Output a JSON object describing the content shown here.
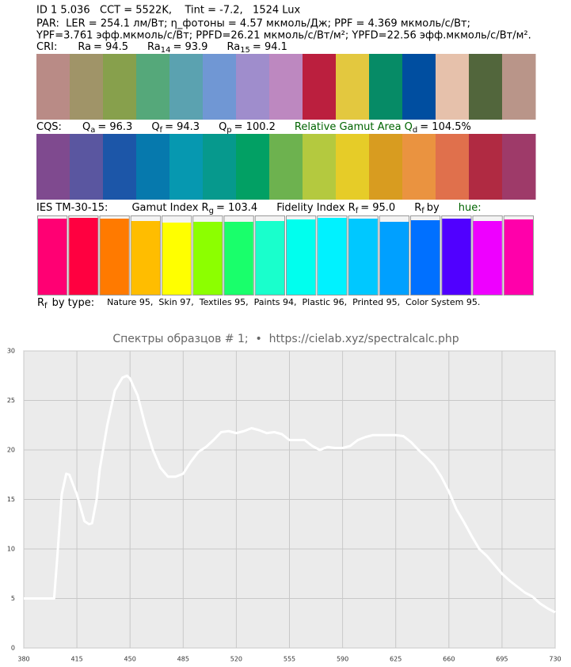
{
  "info": {
    "line1": "ID 1 5.036   CCT = 5522K,    Tint = -7.2,   1524 Lux",
    "line2": "PAR:  LER = 254.1 лм/Вт; η_фотоны = 4.57 мкмоль/Дж; PPF = 4.369 мкмоль/с/Вт;",
    "line3": "YPF=3.761 эфф.мкмоль/с/Вт; PPFD=26.21 мкмоль/с/Вт/м²; YPFD=22.56 эфф.мкмоль/с/Вт/м².",
    "cri": {
      "label": "CRI:",
      "items": [
        {
          "name": "Ra",
          "value": "= 94.5"
        },
        {
          "name": "Ra",
          "sub": "14",
          "value": "= 93.9"
        },
        {
          "name": "Ra",
          "sub": "15",
          "value": "= 94.1"
        }
      ],
      "swatches": [
        "#b98b86",
        "#a09468",
        "#87a04c",
        "#55a87a",
        "#5ba2b0",
        "#7097d4",
        "#9f8dcc",
        "#bd88c0",
        "#bb1f3e",
        "#e3c83f",
        "#068b66",
        "#004ea0",
        "#e6c1ab",
        "#52663c",
        "#b99589"
      ]
    },
    "cqs": {
      "label": "CQS:",
      "items": [
        {
          "name": "Q",
          "sub": "a",
          "value": "= 96.3"
        },
        {
          "name": "Q",
          "sub": "f",
          "value": "= 94.3"
        },
        {
          "name": "Q",
          "sub": "p",
          "value": "= 100.2"
        },
        {
          "name": "Relative Gamut Area Q",
          "sub": "d",
          "value": "= 104.5%",
          "color": "#006400"
        }
      ],
      "swatches": [
        "#7f4a8f",
        "#5a56a0",
        "#1c56a8",
        "#0679ad",
        "#0698b0",
        "#06998d",
        "#02a064",
        "#6db24f",
        "#b4c93f",
        "#e6cc28",
        "#d89c20",
        "#ea9340",
        "#e0704c",
        "#b02a42",
        "#9e3a69"
      ]
    },
    "ies": {
      "label": "IES TM-30-15:",
      "items": [
        {
          "name": "Gamut Index R",
          "sub": "g",
          "value": "= 103.4"
        },
        {
          "name": "Fidelity Index R",
          "sub": "f",
          "value": "= 95.0"
        },
        {
          "name": "R",
          "sub": "f",
          "value": "by"
        },
        {
          "name": "hue:",
          "color": "#006400"
        }
      ]
    },
    "hue_bars": {
      "lim": [
        0,
        100
      ],
      "values": [
        96,
        97,
        96,
        93,
        91,
        92,
        92,
        93,
        95,
        97,
        96,
        92,
        94,
        96,
        93,
        95
      ],
      "colors": [
        "#ff0073",
        "#ff0040",
        "#ff7a00",
        "#ffbd00",
        "#ffff00",
        "#8cff00",
        "#19ff6b",
        "#19ffcc",
        "#00ffee",
        "#00f2ff",
        "#00c8ff",
        "#00a0ff",
        "#0070ff",
        "#5000ff",
        "#ee00ff",
        "#ff00aa"
      ]
    },
    "by_type": {
      "name": "R",
      "sub": "f",
      "value": "by type:",
      "detail": "Nature 95,  Skin 97,  Textiles 95,  Paints 94,  Plastic 96,  Printed 95,  Color System 95."
    }
  },
  "chart_data": {
    "type": "line",
    "title": "Спектры образцов # 1;  •  https://cielab.xyz/spectralcalc.php",
    "x": [
      380,
      385,
      390,
      395,
      400,
      402,
      405,
      408,
      410,
      415,
      420,
      423,
      425,
      428,
      430,
      435,
      440,
      445,
      448,
      450,
      455,
      460,
      465,
      470,
      475,
      480,
      485,
      490,
      495,
      500,
      505,
      510,
      515,
      520,
      525,
      530,
      535,
      540,
      545,
      550,
      555,
      560,
      565,
      570,
      575,
      580,
      585,
      590,
      595,
      600,
      605,
      610,
      615,
      620,
      625,
      630,
      635,
      640,
      645,
      650,
      655,
      660,
      665,
      670,
      675,
      680,
      685,
      690,
      695,
      700,
      705,
      710,
      715,
      720,
      725,
      730
    ],
    "values": [
      5.0,
      5.0,
      5.0,
      5.0,
      5.0,
      9,
      15.5,
      17.6,
      17.5,
      15.5,
      12.8,
      12.5,
      12.6,
      15,
      18,
      22.5,
      26,
      27.3,
      27.5,
      27.2,
      25.5,
      22.5,
      20,
      18.2,
      17.3,
      17.3,
      17.6,
      18.8,
      19.8,
      20.3,
      21.0,
      21.8,
      21.9,
      21.7,
      21.9,
      22.2,
      22.0,
      21.7,
      21.8,
      21.6,
      21.0,
      21.0,
      21.0,
      20.4,
      20.0,
      20.3,
      20.2,
      20.2,
      20.4,
      21.0,
      21.3,
      21.5,
      21.5,
      21.5,
      21.5,
      21.4,
      20.8,
      20.0,
      19.3,
      18.5,
      17.3,
      15.8,
      14.0,
      12.7,
      11.3,
      10.0,
      9.3,
      8.4,
      7.5,
      6.8,
      6.2,
      5.6,
      5.2,
      4.5,
      4.0,
      3.6
    ],
    "color": "#ffffff",
    "xlim": [
      380,
      730
    ],
    "ylim": [
      0,
      30
    ],
    "xticks": [
      380,
      415,
      450,
      485,
      520,
      555,
      590,
      625,
      660,
      695,
      730
    ],
    "yticks": [
      0,
      5,
      10,
      15,
      20,
      25,
      30
    ],
    "grid": true
  }
}
